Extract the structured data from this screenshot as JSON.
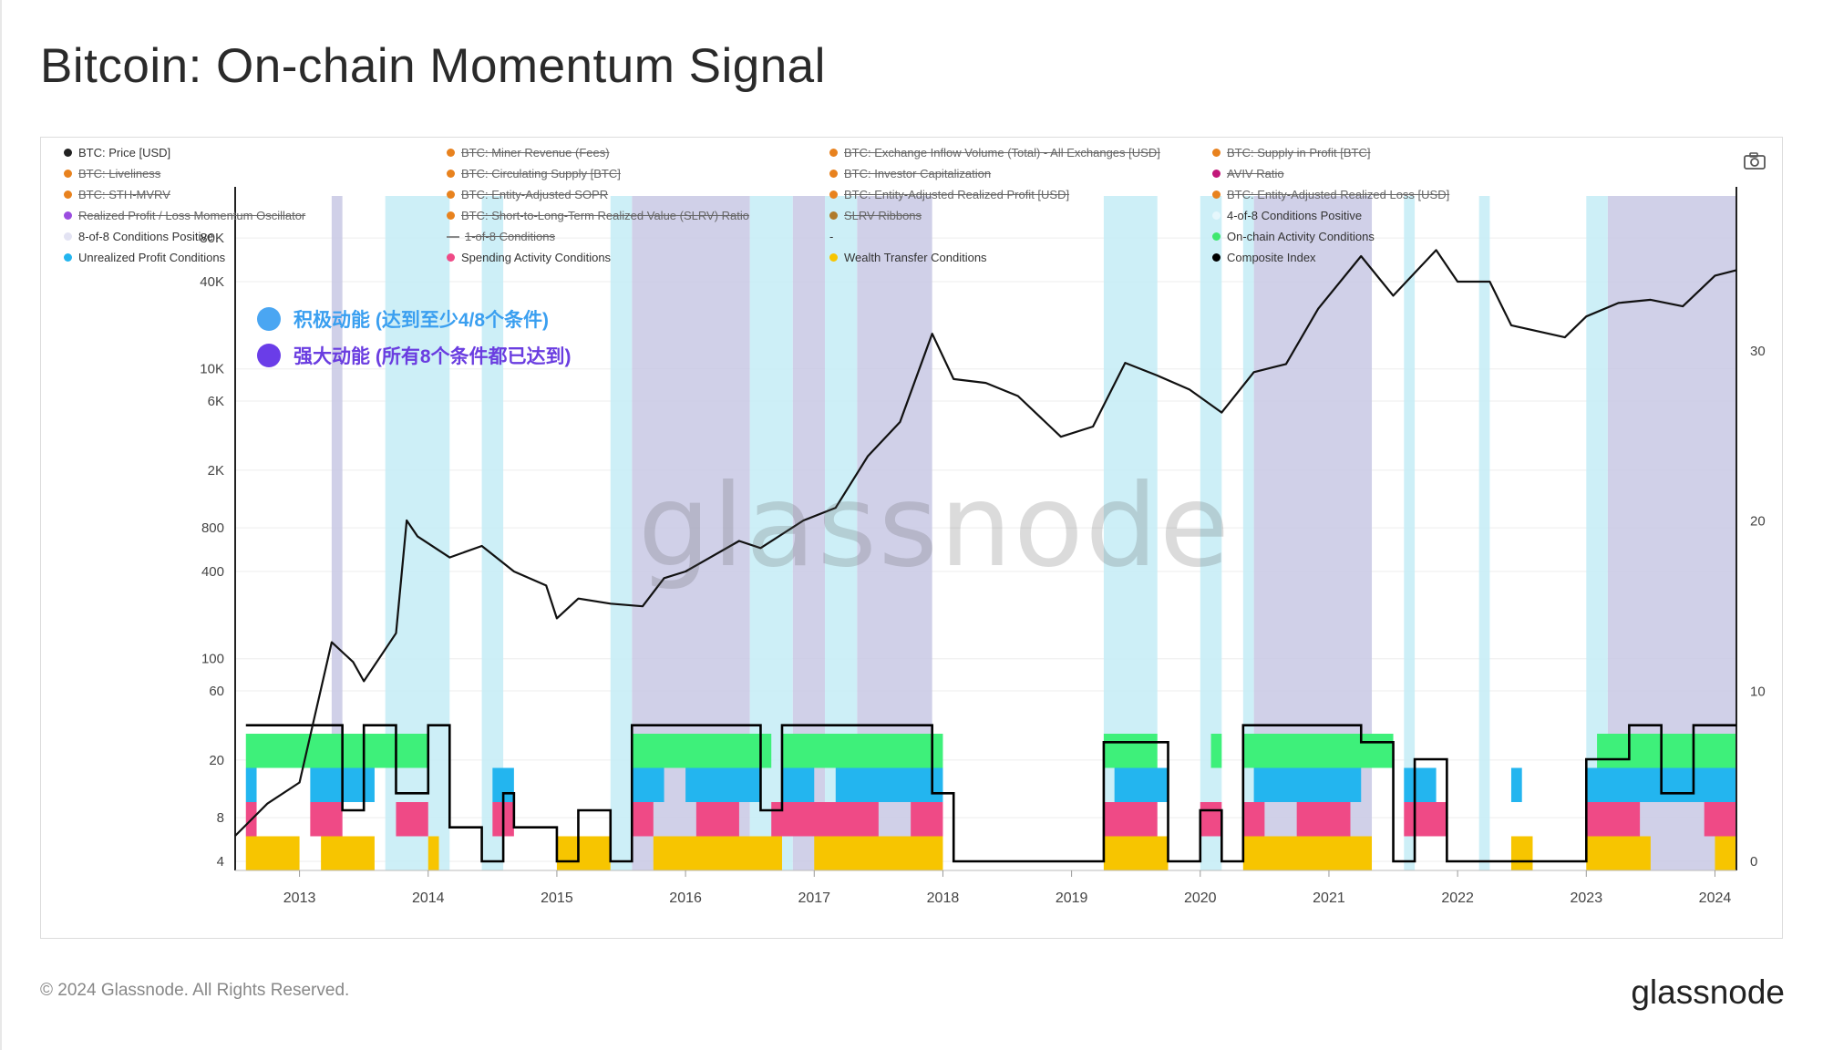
{
  "title": "Bitcoin: On-chain Momentum Signal",
  "legend": [
    {
      "label": "BTC: Price [USD]",
      "color": "#222222",
      "active": true
    },
    {
      "label": "BTC: Miner Revenue (Fees)",
      "color": "#e8821e",
      "active": false
    },
    {
      "label": "BTC: Exchange Inflow Volume (Total) - All Exchanges [USD]",
      "color": "#e8821e",
      "active": false
    },
    {
      "label": "BTC: Supply in Profit [BTC]",
      "color": "#e8821e",
      "active": false
    },
    {
      "label": "BTC: Liveliness",
      "color": "#e8821e",
      "active": false
    },
    {
      "label": "BTC: Circulating Supply [BTC]",
      "color": "#e8821e",
      "active": false
    },
    {
      "label": "BTC: Investor Capitalization",
      "color": "#e8821e",
      "active": false
    },
    {
      "label": "AVIV Ratio",
      "color": "#c2187a",
      "active": false
    },
    {
      "label": "BTC: STH-MVRV",
      "color": "#e8821e",
      "active": false
    },
    {
      "label": "BTC: Entity-Adjusted SOPR",
      "color": "#e8821e",
      "active": false
    },
    {
      "label": "BTC: Entity-Adjusted Realized Profit [USD]",
      "color": "#e8821e",
      "active": false
    },
    {
      "label": "BTC: Entity-Adjusted Realized Loss [USD]",
      "color": "#e8821e",
      "active": false
    },
    {
      "label": "Realized Profit / Loss Momentum Oscillator",
      "color": "#9b4de0",
      "active": false
    },
    {
      "label": "BTC: Short-to-Long-Term Realized Value (SLRV) Ratio",
      "color": "#e8821e",
      "active": false
    },
    {
      "label": "SLRV Ribbons",
      "color": "#b07a2a",
      "active": false
    },
    {
      "label": "4-of-8 Conditions Positive",
      "color": "#e6f7fc",
      "active": true
    },
    {
      "label": "8-of-8 Conditions Positive",
      "color": "#e3e3f3",
      "active": true
    },
    {
      "label": "1-of-8 Conditions",
      "color": "#888888",
      "active": false,
      "line": true
    },
    {
      "label": "-",
      "color": "",
      "active": true,
      "blank": true
    },
    {
      "label": "On-chain Activity Conditions",
      "color": "#3ee86e",
      "active": true
    },
    {
      "label": "Unrealized Profit Conditions",
      "color": "#23b5ef",
      "active": true
    },
    {
      "label": "Spending Activity Conditions",
      "color": "#ef4a86",
      "active": true
    },
    {
      "label": "Wealth Transfer Conditions",
      "color": "#f7c500",
      "active": true
    },
    {
      "label": "Composite Index",
      "color": "#000000",
      "active": true
    }
  ],
  "annotations": [
    {
      "text": "积极动能 (达到至少4/8个条件)",
      "color": "#3a9ff0",
      "dot_color": "#4aa6f2"
    },
    {
      "text": "强大动能 (所有8个条件都已达到)",
      "color": "#6a3de0",
      "dot_color": "#6a3de8"
    }
  ],
  "watermark": "glassnode",
  "footer": {
    "copyright": "© 2024 Glassnode. All Rights Reserved.",
    "logo": "glassnode"
  },
  "colors": {
    "price": "#111111",
    "composite": "#000000",
    "positive4": "#c4ecf6",
    "positive8": "#c8c8e4",
    "onchain": "#3ef07a",
    "unrealized": "#23b5ef",
    "spending": "#ef4a86",
    "wealth": "#f7c500"
  },
  "chart_data": {
    "type": "line",
    "x_range": [
      "2012-07",
      "2024-03"
    ],
    "x_ticks": [
      "2013",
      "2014",
      "2015",
      "2016",
      "2017",
      "2018",
      "2019",
      "2020",
      "2021",
      "2022",
      "2023",
      "2024"
    ],
    "y_left": {
      "scale": "log",
      "ticks": [
        "4",
        "8",
        "20",
        "60",
        "100",
        "400",
        "800",
        "2K",
        "6K",
        "10K",
        "40K",
        "80K"
      ],
      "tick_values": [
        4,
        8,
        20,
        60,
        100,
        400,
        800,
        2000,
        6000,
        10000,
        40000,
        80000
      ]
    },
    "y_right": {
      "scale": "linear",
      "range": [
        0,
        40
      ],
      "ticks": [
        "0",
        "10",
        "20",
        "30"
      ]
    },
    "series": [
      {
        "name": "BTC: Price [USD]",
        "axis": "left",
        "points": [
          [
            "2012-07",
            6
          ],
          [
            "2012-10",
            10
          ],
          [
            "2013-01",
            14
          ],
          [
            "2013-04",
            130
          ],
          [
            "2013-06",
            95
          ],
          [
            "2013-07",
            70
          ],
          [
            "2013-10",
            150
          ],
          [
            "2013-11",
            900
          ],
          [
            "2013-12",
            700
          ],
          [
            "2014-03",
            500
          ],
          [
            "2014-06",
            600
          ],
          [
            "2014-09",
            400
          ],
          [
            "2014-12",
            320
          ],
          [
            "2015-01",
            190
          ],
          [
            "2015-03",
            260
          ],
          [
            "2015-06",
            240
          ],
          [
            "2015-09",
            230
          ],
          [
            "2015-11",
            360
          ],
          [
            "2016-01",
            400
          ],
          [
            "2016-06",
            650
          ],
          [
            "2016-08",
            580
          ],
          [
            "2016-12",
            900
          ],
          [
            "2017-03",
            1100
          ],
          [
            "2017-06",
            2500
          ],
          [
            "2017-09",
            4300
          ],
          [
            "2017-12",
            17500
          ],
          [
            "2018-02",
            8500
          ],
          [
            "2018-05",
            8000
          ],
          [
            "2018-08",
            6500
          ],
          [
            "2018-11",
            4000
          ],
          [
            "2018-12",
            3400
          ],
          [
            "2019-03",
            4000
          ],
          [
            "2019-06",
            11000
          ],
          [
            "2019-09",
            9000
          ],
          [
            "2019-12",
            7200
          ],
          [
            "2020-03",
            5000
          ],
          [
            "2020-06",
            9500
          ],
          [
            "2020-09",
            10800
          ],
          [
            "2020-12",
            26000
          ],
          [
            "2021-04",
            60000
          ],
          [
            "2021-07",
            32000
          ],
          [
            "2021-11",
            66000
          ],
          [
            "2022-01",
            40000
          ],
          [
            "2022-04",
            40000
          ],
          [
            "2022-06",
            20000
          ],
          [
            "2022-11",
            16500
          ],
          [
            "2023-01",
            23000
          ],
          [
            "2023-04",
            28500
          ],
          [
            "2023-07",
            30000
          ],
          [
            "2023-10",
            27000
          ],
          [
            "2024-01",
            44000
          ],
          [
            "2024-03",
            48000
          ]
        ]
      },
      {
        "name": "Composite Index",
        "axis": "right",
        "points": [
          [
            "2012-08",
            8
          ],
          [
            "2013-03",
            8
          ],
          [
            "2013-05",
            3
          ],
          [
            "2013-07",
            8
          ],
          [
            "2013-10",
            4
          ],
          [
            "2014-01",
            8
          ],
          [
            "2014-03",
            2
          ],
          [
            "2014-06",
            0
          ],
          [
            "2014-08",
            4
          ],
          [
            "2014-09",
            2
          ],
          [
            "2015-01",
            0
          ],
          [
            "2015-03",
            3
          ],
          [
            "2015-06",
            0
          ],
          [
            "2015-08",
            8
          ],
          [
            "2015-11",
            8
          ],
          [
            "2016-04",
            8
          ],
          [
            "2016-08",
            3
          ],
          [
            "2016-10",
            8
          ],
          [
            "2017-02",
            8
          ],
          [
            "2017-09",
            8
          ],
          [
            "2017-12",
            4
          ],
          [
            "2018-02",
            0
          ],
          [
            "2018-12",
            0
          ],
          [
            "2019-04",
            7
          ],
          [
            "2019-08",
            7
          ],
          [
            "2019-10",
            0
          ],
          [
            "2020-01",
            3
          ],
          [
            "2020-03",
            0
          ],
          [
            "2020-05",
            8
          ],
          [
            "2021-04",
            7
          ],
          [
            "2021-07",
            0
          ],
          [
            "2021-09",
            6
          ],
          [
            "2021-12",
            0
          ],
          [
            "2022-06",
            0
          ],
          [
            "2022-10",
            0
          ],
          [
            "2023-01",
            6
          ],
          [
            "2023-05",
            8
          ],
          [
            "2023-08",
            4
          ],
          [
            "2023-11",
            8
          ],
          [
            "2024-03",
            8
          ]
        ]
      }
    ],
    "signal_bands": [
      {
        "name": "8-of-8 Conditions Positive",
        "periods": [
          [
            "2013-04",
            "2013-05"
          ],
          [
            "2015-08",
            "2016-07"
          ],
          [
            "2016-11",
            "2017-02"
          ],
          [
            "2017-05",
            "2017-12"
          ],
          [
            "2020-06",
            "2021-05"
          ],
          [
            "2023-03",
            "2024-03"
          ]
        ]
      },
      {
        "name": "4-of-8 Conditions Positive",
        "periods": [
          [
            "2013-09",
            "2014-03"
          ],
          [
            "2014-06",
            "2014-08"
          ],
          [
            "2015-06",
            "2015-08"
          ],
          [
            "2016-07",
            "2016-11"
          ],
          [
            "2017-02",
            "2017-05"
          ],
          [
            "2019-04",
            "2019-09"
          ],
          [
            "2020-01",
            "2020-03"
          ],
          [
            "2020-05",
            "2020-06"
          ],
          [
            "2021-08",
            "2021-09"
          ],
          [
            "2022-03",
            "2022-04"
          ],
          [
            "2023-01",
            "2023-03"
          ]
        ]
      }
    ],
    "condition_stacks": [
      {
        "name": "Wealth Transfer Conditions",
        "periods": [
          [
            "2012-08",
            "2013-01"
          ],
          [
            "2013-03",
            "2013-08"
          ],
          [
            "2014-01",
            "2014-02"
          ],
          [
            "2015-01",
            "2015-06"
          ],
          [
            "2015-10",
            "2016-10"
          ],
          [
            "2017-01",
            "2018-01"
          ],
          [
            "2019-04",
            "2019-10"
          ],
          [
            "2020-05",
            "2021-05"
          ],
          [
            "2022-06",
            "2022-08"
          ],
          [
            "2023-01",
            "2023-07"
          ],
          [
            "2024-01",
            "2024-03"
          ]
        ]
      },
      {
        "name": "Spending Activity Conditions",
        "periods": [
          [
            "2012-08",
            "2012-09"
          ],
          [
            "2013-02",
            "2013-05"
          ],
          [
            "2013-10",
            "2014-01"
          ],
          [
            "2014-07",
            "2014-09"
          ],
          [
            "2015-08",
            "2015-10"
          ],
          [
            "2016-02",
            "2016-06"
          ],
          [
            "2016-09",
            "2017-07"
          ],
          [
            "2017-10",
            "2018-01"
          ],
          [
            "2019-04",
            "2019-09"
          ],
          [
            "2020-01",
            "2020-03"
          ],
          [
            "2020-05",
            "2020-07"
          ],
          [
            "2020-10",
            "2021-03"
          ],
          [
            "2021-08",
            "2021-12"
          ],
          [
            "2023-01",
            "2023-06"
          ],
          [
            "2023-12",
            "2024-03"
          ]
        ]
      },
      {
        "name": "Unrealized Profit Conditions",
        "periods": [
          [
            "2012-08",
            "2012-09"
          ],
          [
            "2013-02",
            "2013-08"
          ],
          [
            "2014-07",
            "2014-09"
          ],
          [
            "2015-08",
            "2015-11"
          ],
          [
            "2016-01",
            "2016-08"
          ],
          [
            "2016-10",
            "2017-01"
          ],
          [
            "2017-03",
            "2018-01"
          ],
          [
            "2019-05",
            "2019-10"
          ],
          [
            "2020-06",
            "2021-04"
          ],
          [
            "2021-08",
            "2021-11"
          ],
          [
            "2022-06",
            "2022-07"
          ],
          [
            "2023-01",
            "2024-03"
          ]
        ]
      },
      {
        "name": "On-chain Activity Conditions",
        "periods": [
          [
            "2012-08",
            "2014-01"
          ],
          [
            "2015-08",
            "2016-09"
          ],
          [
            "2016-10",
            "2018-01"
          ],
          [
            "2019-04",
            "2019-09"
          ],
          [
            "2020-02",
            "2020-03"
          ],
          [
            "2020-05",
            "2021-07"
          ],
          [
            "2023-02",
            "2024-03"
          ]
        ]
      }
    ]
  }
}
